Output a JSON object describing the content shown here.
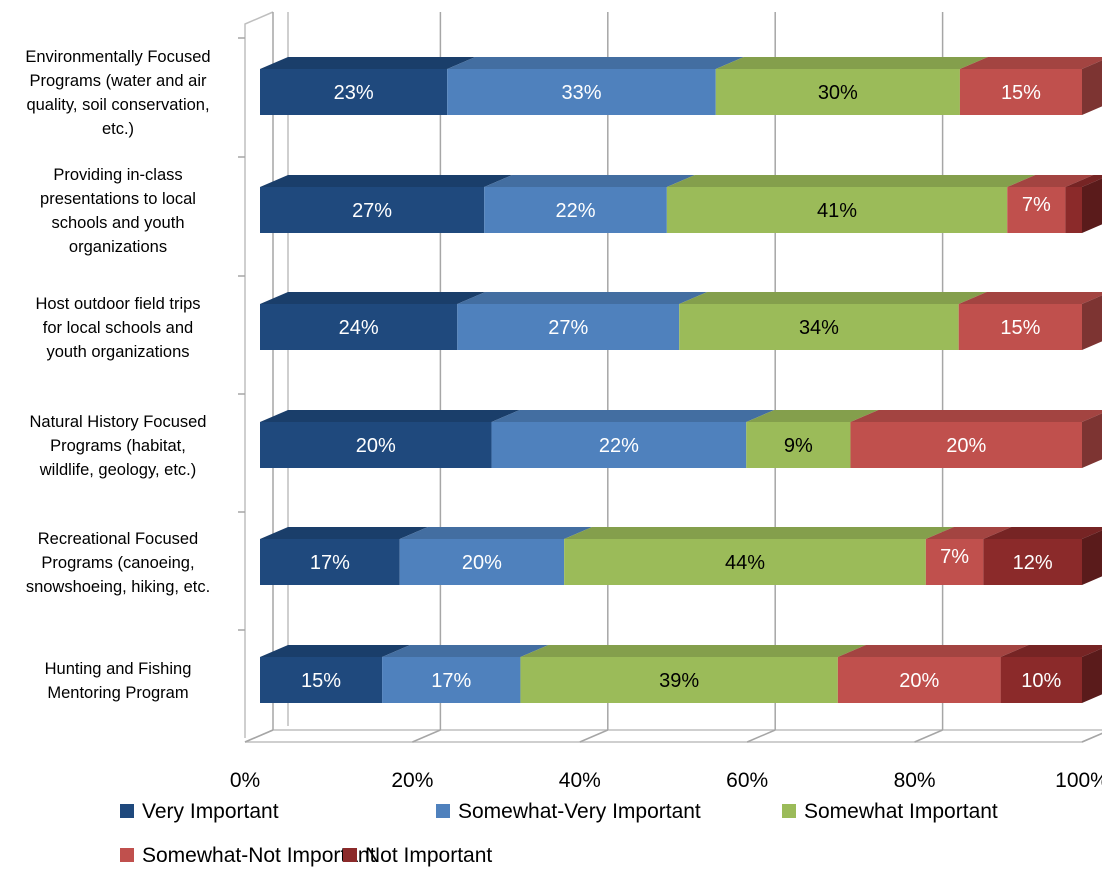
{
  "chart_data": {
    "type": "bar",
    "orientation": "horizontal",
    "stacked": "percent",
    "style": "3d",
    "categories": [
      [
        "Environmentally Focused",
        "Programs (water and air",
        "quality, soil conservation,",
        "etc.)"
      ],
      [
        "Providing in-class",
        "presentations to local",
        "schools and youth",
        "organizations"
      ],
      [
        "Host outdoor field trips",
        "for local schools and",
        "youth organizations"
      ],
      [
        "Natural History Focused",
        "Programs (habitat,",
        "wildlife, geology, etc.)"
      ],
      [
        "Recreational Focused",
        "Programs (canoeing,",
        "snowshoeing, hiking, etc."
      ],
      [
        "Hunting and Fishing",
        "Mentoring Program"
      ]
    ],
    "series": [
      {
        "name": "Very Important",
        "color": "#1F497D",
        "values": [
          23,
          27,
          24,
          20,
          17,
          15
        ],
        "labels": [
          "23%",
          "27%",
          "24%",
          "20%",
          "17%",
          "15%"
        ]
      },
      {
        "name": "Somewhat-Very Important",
        "color": "#4F81BD",
        "values": [
          33,
          22,
          27,
          22,
          20,
          17
        ],
        "labels": [
          "33%",
          "22%",
          "27%",
          "22%",
          "20%",
          "17%"
        ]
      },
      {
        "name": "Somewhat Important",
        "color": "#9BBB59",
        "values": [
          30,
          41,
          34,
          9,
          44,
          39
        ],
        "labels": [
          "30%",
          "41%",
          "34%",
          "9%",
          "44%",
          "39%"
        ]
      },
      {
        "name": "Somewhat-Not Important",
        "color": "#C0504D",
        "values": [
          15,
          7,
          15,
          20,
          7,
          20
        ],
        "labels": [
          "15%",
          "7%",
          "15%",
          "20%",
          "7%",
          "20%"
        ]
      },
      {
        "name": "Not Important",
        "color": "#8B2A2A",
        "values": [
          0,
          2,
          0,
          0,
          12,
          10
        ],
        "labels": [
          "",
          "",
          "",
          "",
          "12%",
          "10%"
        ]
      }
    ],
    "xlim": [
      0,
      100
    ],
    "xticks": [
      "0%",
      "20%",
      "40%",
      "60%",
      "80%",
      "100%"
    ],
    "grid": true,
    "legend_position": "bottom"
  }
}
